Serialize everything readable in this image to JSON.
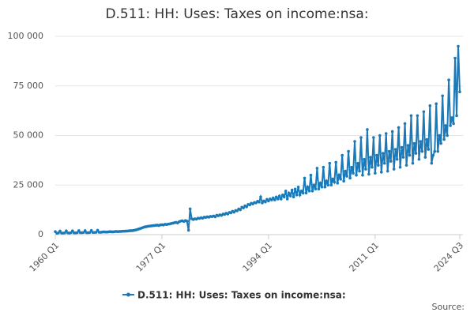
{
  "chart_data": {
    "type": "line",
    "title": "D.511: HH: Uses: Taxes on income:nsa:",
    "source": "Source:",
    "categories": [
      "1960 Q1",
      null,
      null,
      null,
      null,
      null,
      null,
      null,
      null,
      null,
      null,
      null,
      null,
      null,
      null,
      null,
      null,
      null,
      null,
      null,
      null,
      null,
      null,
      null,
      null,
      null,
      null,
      null,
      null,
      null,
      null,
      null,
      null,
      null,
      null,
      null,
      null,
      null,
      null,
      null,
      null,
      null,
      null,
      null,
      null,
      null,
      null,
      null,
      null,
      null,
      null,
      null,
      null,
      null,
      null,
      null,
      null,
      null,
      null,
      null,
      null,
      null,
      null,
      null,
      null,
      null,
      null,
      null,
      "1977 Q1",
      null,
      null,
      null,
      null,
      null,
      null,
      null,
      null,
      null,
      null,
      null,
      null,
      null,
      null,
      null,
      null,
      null,
      null,
      null,
      null,
      null,
      null,
      null,
      null,
      null,
      null,
      null,
      null,
      null,
      null,
      null,
      null,
      null,
      null,
      null,
      null,
      null,
      null,
      null,
      null,
      null,
      null,
      null,
      null,
      null,
      null,
      null,
      null,
      null,
      null,
      null,
      null,
      null,
      null,
      null,
      null,
      null,
      null,
      null,
      null,
      null,
      null,
      null,
      null,
      null,
      null,
      null,
      "1994 Q1",
      null,
      null,
      null,
      null,
      null,
      null,
      null,
      null,
      null,
      null,
      null,
      null,
      null,
      null,
      null,
      null,
      null,
      null,
      null,
      null,
      null,
      null,
      null,
      null,
      null,
      null,
      null,
      null,
      null,
      null,
      null,
      null,
      null,
      null,
      null,
      null,
      null,
      null,
      null,
      null,
      null,
      null,
      null,
      null,
      null,
      null,
      null,
      null,
      null,
      null,
      null,
      null,
      null,
      null,
      null,
      null,
      null,
      null,
      null,
      null,
      null,
      null,
      null,
      null,
      null,
      null,
      null,
      "2011 Q1",
      null,
      null,
      null,
      null,
      null,
      null,
      null,
      null,
      null,
      null,
      null,
      null,
      null,
      null,
      null,
      null,
      null,
      null,
      null,
      null,
      null,
      null,
      null,
      null,
      null,
      null,
      null,
      null,
      null,
      null,
      null,
      null,
      null,
      null,
      null,
      null,
      null,
      null,
      null,
      null,
      null,
      null,
      null,
      null,
      null,
      null,
      null,
      null,
      null,
      null,
      null,
      null,
      null,
      "2024 Q3"
    ],
    "series": [
      {
        "name": "D.511: HH: Uses: Taxes on income:nsa:",
        "color": "#1a7ab9",
        "values": [
          1500,
          700,
          900,
          1800,
          800,
          800,
          900,
          1900,
          900,
          800,
          1000,
          1900,
          900,
          900,
          1000,
          2000,
          1000,
          1000,
          1100,
          2000,
          1000,
          1000,
          1100,
          2100,
          1100,
          1100,
          1200,
          2200,
          1200,
          1200,
          1300,
          1400,
          1300,
          1300,
          1400,
          1500,
          1400,
          1400,
          1500,
          1600,
          1500,
          1600,
          1600,
          1700,
          1700,
          1800,
          1800,
          1900,
          2000,
          2000,
          2100,
          2300,
          2500,
          2800,
          3000,
          3300,
          3600,
          3900,
          4000,
          4200,
          4300,
          4400,
          4500,
          4600,
          4700,
          4800,
          4600,
          4900,
          5000,
          4900,
          5200,
          5100,
          5300,
          5400,
          5600,
          5800,
          6000,
          6200,
          5900,
          6500,
          6800,
          7000,
          6600,
          7100,
          6800,
          2200,
          13000,
          8000,
          7600,
          8000,
          7800,
          8300,
          8200,
          8500,
          8300,
          8800,
          8700,
          9000,
          8800,
          9200,
          9100,
          9400,
          9000,
          9800,
          9500,
          10000,
          9700,
          10400,
          10200,
          10800,
          10400,
          11200,
          11000,
          11800,
          11300,
          12200,
          12000,
          13000,
          12500,
          13800,
          13500,
          14500,
          14000,
          15200,
          15000,
          15800,
          15500,
          16200,
          16000,
          16800,
          16400,
          19000,
          16000,
          17000,
          16500,
          17800,
          17000,
          18000,
          17500,
          18500,
          17500,
          19000,
          18000,
          19500,
          18000,
          20000,
          19000,
          22000,
          18000,
          21000,
          19500,
          22500,
          19000,
          23000,
          20000,
          24000,
          20000,
          22000,
          21000,
          28500,
          21000,
          24000,
          22000,
          30000,
          22000,
          25000,
          23000,
          33500,
          23000,
          26000,
          24000,
          34000,
          24000,
          27000,
          25000,
          36000,
          25000,
          28000,
          26500,
          36500,
          26000,
          30000,
          28000,
          40000,
          27000,
          32000,
          29500,
          42000,
          28500,
          34000,
          31000,
          47000,
          30000,
          36000,
          32000,
          49000,
          30000,
          38000,
          33000,
          53000,
          30500,
          39000,
          34000,
          49000,
          31000,
          40000,
          35000,
          50000,
          31500,
          41000,
          36000,
          51000,
          32000,
          42000,
          37000,
          52000,
          33000,
          43000,
          38000,
          54000,
          34000,
          44000,
          39000,
          56000,
          35000,
          45000,
          40000,
          60000,
          36000,
          46000,
          41000,
          60000,
          38000,
          47000,
          42000,
          62000,
          39000,
          48000,
          43000,
          65000,
          36000,
          40000,
          42000,
          66000,
          42000,
          50000,
          46000,
          70000,
          48000,
          55000,
          50000,
          78000,
          55000,
          59000,
          56000,
          89000,
          60000,
          95000,
          72000
        ]
      }
    ],
    "ylim": [
      0,
      100000
    ],
    "yticks": [
      0,
      {
        "value": 25000,
        "label": "25 000"
      },
      {
        "value": 50000,
        "label": "50 000"
      },
      {
        "value": 75000,
        "label": "75 000"
      },
      {
        "value": 100000,
        "label": "100 000"
      }
    ],
    "grid": true
  }
}
